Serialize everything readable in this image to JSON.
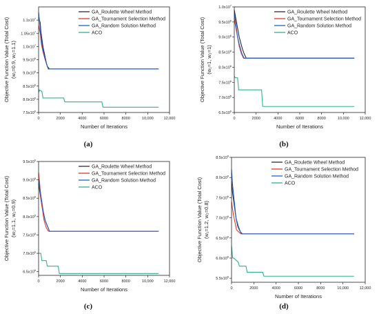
{
  "colors": {
    "GA_Roulette Wheel Method": "#2b2b2b",
    "GA_Tournament Selection Method": "#e8362b",
    "GA_Random Solution Method": "#1f5fd6",
    "ACO": "#2db38c"
  },
  "chart_data": [
    {
      "type": "line",
      "panel_label": "(a)",
      "xlabel": "Number of Iterations",
      "ylabel_main": "Objective Function Value (Total Cost)",
      "ylabel_sub": "(w₁=0.9, w₂=1.1)",
      "xlim": [
        0,
        12000
      ],
      "ylim": [
        7500000,
        11500000
      ],
      "x_ticks": [
        0,
        2000,
        4000,
        6000,
        8000,
        10000,
        12000
      ],
      "x_tick_labels": [
        "0",
        "2000",
        "4000",
        "6000",
        "8000",
        "10,000",
        "12,000"
      ],
      "y_ticks": [
        {
          "value": 7500000,
          "mant": "7.5x10",
          "exp": "6"
        },
        {
          "value": 8000000,
          "mant": "8.0x10",
          "exp": "6"
        },
        {
          "value": 8500000,
          "mant": "8.5x10",
          "exp": "6"
        },
        {
          "value": 9000000,
          "mant": "9.0x10",
          "exp": "6"
        },
        {
          "value": 9500000,
          "mant": "9.5x10",
          "exp": "6"
        },
        {
          "value": 10000000,
          "mant": "1.0x10",
          "exp": "7"
        },
        {
          "value": 10500000,
          "mant": "1.05x10",
          "exp": "7"
        },
        {
          "value": 11000000,
          "mant": "1.1x10",
          "exp": "7"
        }
      ],
      "series": [
        {
          "name": "GA_Roulette Wheel Method",
          "x": [
            0,
            150,
            200,
            300,
            400,
            500,
            600,
            700,
            800,
            900,
            11000
          ],
          "y": [
            11100000,
            10900000,
            10600000,
            10300000,
            10000000,
            9800000,
            9600000,
            9400000,
            9250000,
            9150000,
            9150000
          ]
        },
        {
          "name": "GA_Tournament Selection Method",
          "x": [
            0,
            150,
            250,
            400,
            600,
            800,
            1000,
            11000
          ],
          "y": [
            10800000,
            10500000,
            10100000,
            9800000,
            9500000,
            9250000,
            9150000,
            9150000
          ]
        },
        {
          "name": "GA_Random Solution Method",
          "x": [
            0,
            100,
            200,
            350,
            500,
            650,
            800,
            1000,
            11000
          ],
          "y": [
            11300000,
            10900000,
            10400000,
            10000000,
            9700000,
            9450000,
            9250000,
            9150000,
            9150000
          ]
        },
        {
          "name": "ACO",
          "x": [
            0,
            50,
            100,
            300,
            400,
            2300,
            2400,
            5800,
            5900,
            11000
          ],
          "y": [
            8400000,
            8300000,
            8350000,
            8300000,
            8050000,
            8050000,
            7900000,
            7900000,
            7700000,
            7700000
          ]
        }
      ]
    },
    {
      "type": "line",
      "panel_label": "(b)",
      "xlabel": "Number of Iterations",
      "ylabel_main": "Objective Function Value (Total Cost)",
      "ylabel_sub": "(w₁=1, w₂=1)",
      "xlim": [
        0,
        12000
      ],
      "ylim": [
        6500000,
        10000000
      ],
      "x_ticks": [
        0,
        2000,
        4000,
        6000,
        8000,
        10000,
        12000
      ],
      "x_tick_labels": [
        "0",
        "2000",
        "4000",
        "6000",
        "8000",
        "10,000",
        "12,000"
      ],
      "y_ticks": [
        {
          "value": 6500000,
          "mant": "6.5x10",
          "exp": "6"
        },
        {
          "value": 7000000,
          "mant": "7.0x10",
          "exp": "6"
        },
        {
          "value": 7500000,
          "mant": "7.5x10",
          "exp": "6"
        },
        {
          "value": 8000000,
          "mant": "8.0x10",
          "exp": "6"
        },
        {
          "value": 8500000,
          "mant": "8.5x10",
          "exp": "6"
        },
        {
          "value": 9000000,
          "mant": "9.0x10",
          "exp": "6"
        },
        {
          "value": 9500000,
          "mant": "9.5x10",
          "exp": "6"
        },
        {
          "value": 10000000,
          "mant": "1.0x10",
          "exp": "7"
        }
      ],
      "series": [
        {
          "name": "GA_Roulette Wheel Method",
          "x": [
            0,
            150,
            300,
            450,
            600,
            750,
            900,
            1100,
            11000
          ],
          "y": [
            9900000,
            9600000,
            9300000,
            9000000,
            8800000,
            8600000,
            8450000,
            8300000,
            8300000
          ]
        },
        {
          "name": "GA_Tournament Selection Method",
          "x": [
            0,
            150,
            300,
            450,
            650,
            850,
            11000
          ],
          "y": [
            9600000,
            9300000,
            9000000,
            8700000,
            8450000,
            8300000,
            8300000
          ]
        },
        {
          "name": "GA_Random Solution Method",
          "x": [
            0,
            150,
            300,
            500,
            700,
            900,
            11000
          ],
          "y": [
            9800000,
            9400000,
            9000000,
            8700000,
            8450000,
            8300000,
            8300000
          ]
        },
        {
          "name": "ACO",
          "x": [
            0,
            100,
            300,
            400,
            2500,
            2600,
            11000
          ],
          "y": [
            7700000,
            7650000,
            7650000,
            7250000,
            7250000,
            6700000,
            6700000
          ]
        }
      ]
    },
    {
      "type": "line",
      "panel_label": "(c)",
      "xlabel": "Number of Iterations",
      "ylabel_main": "Objective Function Value (Total Cost)",
      "ylabel_sub": "(w₁=1.1, w₂=0.9)",
      "xlim": [
        0,
        12000
      ],
      "ylim": [
        6400000,
        9500000
      ],
      "x_ticks": [
        0,
        2000,
        4000,
        6000,
        8000,
        10000,
        12000
      ],
      "x_tick_labels": [
        "0",
        "2000",
        "4000",
        "6000",
        "8000",
        "10,000",
        "12,000"
      ],
      "y_ticks": [
        {
          "value": 6500000,
          "mant": "6.5x10",
          "exp": "6"
        },
        {
          "value": 7000000,
          "mant": "7.0x10",
          "exp": "6"
        },
        {
          "value": 7500000,
          "mant": "7.5x10",
          "exp": "6"
        },
        {
          "value": 8000000,
          "mant": "8.0x10",
          "exp": "6"
        },
        {
          "value": 8500000,
          "mant": "8.5x10",
          "exp": "6"
        },
        {
          "value": 9000000,
          "mant": "9.0x10",
          "exp": "6"
        },
        {
          "value": 9500000,
          "mant": "9.5x10",
          "exp": "6"
        }
      ],
      "series": [
        {
          "name": "GA_Roulette Wheel Method",
          "x": [
            0,
            150,
            300,
            450,
            600,
            800,
            1000,
            11000
          ],
          "y": [
            8900000,
            8600000,
            8300000,
            8100000,
            7900000,
            7750000,
            7600000,
            7600000
          ]
        },
        {
          "name": "GA_Tournament Selection Method",
          "x": [
            0,
            100,
            200,
            350,
            500,
            700,
            900,
            11000
          ],
          "y": [
            9200000,
            8900000,
            8500000,
            8200000,
            7900000,
            7700000,
            7600000,
            7600000
          ]
        },
        {
          "name": "GA_Random Solution Method",
          "x": [
            0,
            150,
            300,
            450,
            600,
            800,
            1000,
            11000
          ],
          "y": [
            9000000,
            8700000,
            8400000,
            8100000,
            7900000,
            7750000,
            7600000,
            7600000
          ]
        },
        {
          "name": "ACO",
          "x": [
            0,
            200,
            300,
            700,
            800,
            1800,
            1900,
            11000
          ],
          "y": [
            7000000,
            7000000,
            6800000,
            6800000,
            6650000,
            6650000,
            6450000,
            6450000
          ]
        }
      ]
    },
    {
      "type": "line",
      "panel_label": "(d)",
      "xlabel": "Number of Iterations",
      "ylabel_main": "Objective Function Value (Total Cost)",
      "ylabel_sub": "(w₁=1.2, w₂=0.8)",
      "xlim": [
        0,
        12000
      ],
      "ylim": [
        5400000,
        8500000
      ],
      "x_ticks": [
        0,
        2000,
        4000,
        6000,
        8000,
        10000,
        12000
      ],
      "x_tick_labels": [
        "0",
        "2000",
        "4000",
        "6000",
        "8000",
        "10,000",
        "12,000"
      ],
      "y_ticks": [
        {
          "value": 5500000,
          "mant": "5.5x10",
          "exp": "6"
        },
        {
          "value": 6000000,
          "mant": "6.0x10",
          "exp": "6"
        },
        {
          "value": 6500000,
          "mant": "6.5x10",
          "exp": "6"
        },
        {
          "value": 7000000,
          "mant": "7.0x10",
          "exp": "6"
        },
        {
          "value": 7500000,
          "mant": "7.5x10",
          "exp": "6"
        },
        {
          "value": 8000000,
          "mant": "8.0x10",
          "exp": "6"
        },
        {
          "value": 8500000,
          "mant": "8.5x10",
          "exp": "6"
        }
      ],
      "series": [
        {
          "name": "GA_Roulette Wheel Method",
          "x": [
            0,
            100,
            250,
            400,
            550,
            700,
            900,
            11000
          ],
          "y": [
            7900000,
            7600000,
            7300000,
            7000000,
            6800000,
            6700000,
            6600000,
            6600000
          ]
        },
        {
          "name": "GA_Tournament Selection Method",
          "x": [
            0,
            150,
            300,
            450,
            650,
            850,
            11000
          ],
          "y": [
            7400000,
            7100000,
            6900000,
            6700000,
            6650000,
            6600000,
            6600000
          ]
        },
        {
          "name": "GA_Random Solution Method",
          "x": [
            0,
            100,
            250,
            400,
            600,
            800,
            1000,
            11000
          ],
          "y": [
            8200000,
            7800000,
            7400000,
            7000000,
            6800000,
            6650000,
            6600000,
            6600000
          ]
        },
        {
          "name": "ACO",
          "x": [
            0,
            100,
            200,
            600,
            700,
            1300,
            1400,
            2800,
            2900,
            11000
          ],
          "y": [
            6300000,
            6000000,
            6000000,
            5900000,
            5800000,
            5800000,
            5650000,
            5650000,
            5550000,
            5550000
          ]
        }
      ]
    }
  ]
}
